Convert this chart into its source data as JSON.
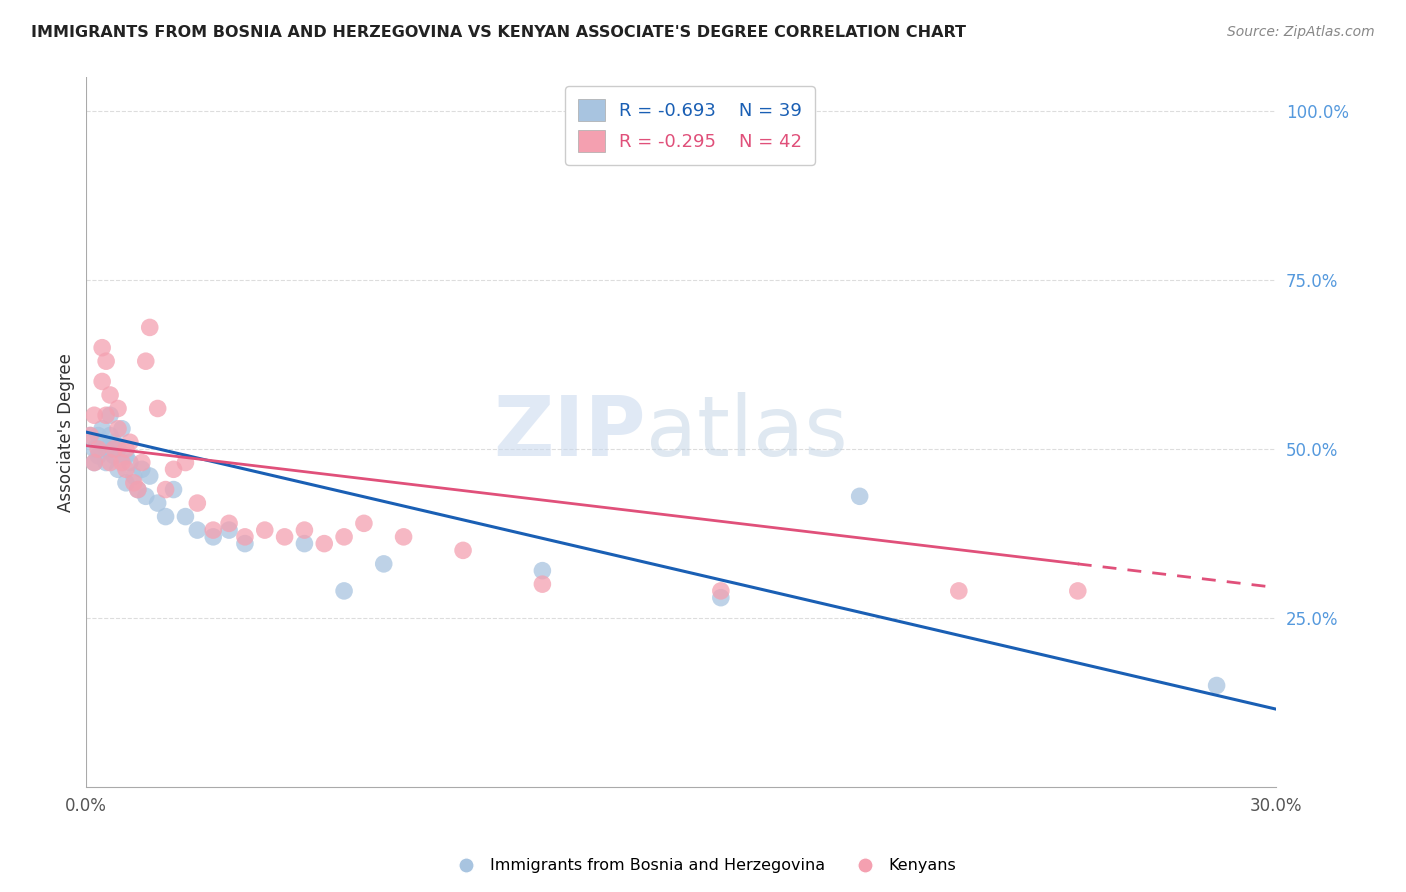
{
  "title": "IMMIGRANTS FROM BOSNIA AND HERZEGOVINA VS KENYAN ASSOCIATE'S DEGREE CORRELATION CHART",
  "source": "Source: ZipAtlas.com",
  "ylabel": "Associate's Degree",
  "right_yticks": [
    "100.0%",
    "75.0%",
    "50.0%",
    "25.0%"
  ],
  "right_ytick_vals": [
    1.0,
    0.75,
    0.5,
    0.25
  ],
  "xlim": [
    0.0,
    0.3
  ],
  "ylim": [
    0.0,
    1.05
  ],
  "legend_blue_r": "R = -0.693",
  "legend_blue_n": "N = 39",
  "legend_pink_r": "R = -0.295",
  "legend_pink_n": "N = 42",
  "blue_color": "#a8c4e0",
  "pink_color": "#f4a0b0",
  "trend_blue": "#1a5fb4",
  "trend_pink": "#e0507a",
  "watermark_zip": "ZIP",
  "watermark_atlas": "atlas",
  "background_color": "#ffffff",
  "grid_color": "#dddddd",
  "blue_scatter_x": [
    0.001,
    0.002,
    0.002,
    0.003,
    0.003,
    0.004,
    0.004,
    0.005,
    0.005,
    0.006,
    0.006,
    0.007,
    0.007,
    0.008,
    0.008,
    0.009,
    0.01,
    0.01,
    0.011,
    0.012,
    0.013,
    0.014,
    0.015,
    0.016,
    0.018,
    0.02,
    0.022,
    0.025,
    0.028,
    0.032,
    0.036,
    0.04,
    0.055,
    0.065,
    0.075,
    0.115,
    0.16,
    0.195,
    0.285
  ],
  "blue_scatter_y": [
    0.52,
    0.5,
    0.48,
    0.52,
    0.49,
    0.51,
    0.53,
    0.5,
    0.48,
    0.52,
    0.55,
    0.49,
    0.51,
    0.47,
    0.5,
    0.53,
    0.49,
    0.45,
    0.48,
    0.46,
    0.44,
    0.47,
    0.43,
    0.46,
    0.42,
    0.4,
    0.44,
    0.4,
    0.38,
    0.37,
    0.38,
    0.36,
    0.36,
    0.29,
    0.33,
    0.32,
    0.28,
    0.43,
    0.15
  ],
  "pink_scatter_x": [
    0.001,
    0.002,
    0.002,
    0.003,
    0.004,
    0.004,
    0.005,
    0.005,
    0.006,
    0.006,
    0.007,
    0.008,
    0.008,
    0.009,
    0.01,
    0.01,
    0.011,
    0.012,
    0.013,
    0.014,
    0.015,
    0.016,
    0.018,
    0.02,
    0.022,
    0.025,
    0.028,
    0.032,
    0.036,
    0.04,
    0.045,
    0.05,
    0.055,
    0.06,
    0.065,
    0.07,
    0.08,
    0.095,
    0.115,
    0.16,
    0.22,
    0.25
  ],
  "pink_scatter_y": [
    0.52,
    0.55,
    0.48,
    0.5,
    0.6,
    0.65,
    0.63,
    0.55,
    0.58,
    0.48,
    0.5,
    0.53,
    0.56,
    0.48,
    0.47,
    0.5,
    0.51,
    0.45,
    0.44,
    0.48,
    0.63,
    0.68,
    0.56,
    0.44,
    0.47,
    0.48,
    0.42,
    0.38,
    0.39,
    0.37,
    0.38,
    0.37,
    0.38,
    0.36,
    0.37,
    0.39,
    0.37,
    0.35,
    0.3,
    0.29,
    0.29,
    0.29
  ],
  "trend_blue_x0": 0.0,
  "trend_blue_y0": 0.525,
  "trend_blue_x1": 0.3,
  "trend_blue_y1": 0.115,
  "trend_pink_x0": 0.0,
  "trend_pink_y0": 0.505,
  "trend_pink_x1": 0.3,
  "trend_pink_y1": 0.295
}
